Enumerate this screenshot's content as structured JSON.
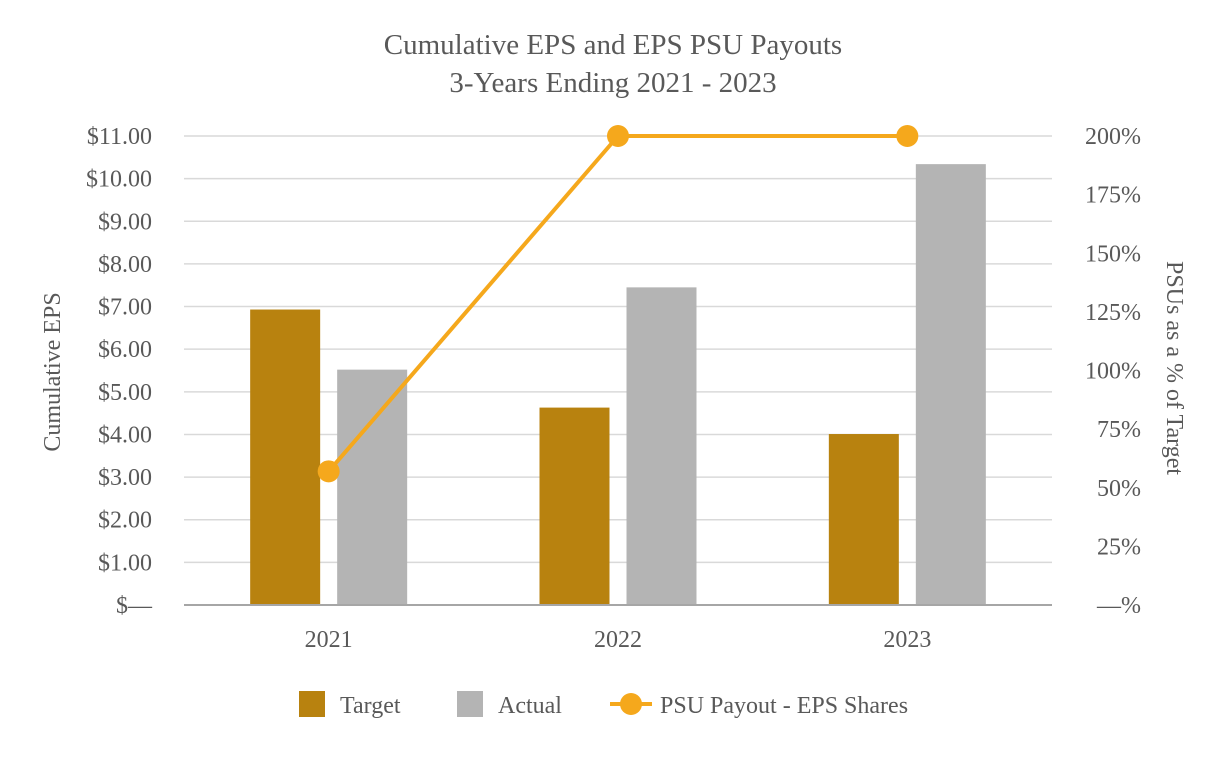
{
  "chart_data": {
    "type": "bar",
    "title": "Cumulative EPS and EPS PSU Payouts",
    "subtitle": "3-Years Ending 2021 - 2023",
    "categories": [
      "2021",
      "2022",
      "2023"
    ],
    "series": [
      {
        "name": "Target",
        "type": "bar",
        "axis": "left",
        "values": [
          6.93,
          4.63,
          4.01
        ],
        "color": "#b8820f"
      },
      {
        "name": "Actual",
        "type": "bar",
        "axis": "left",
        "values": [
          5.52,
          7.45,
          10.34
        ],
        "color": "#b4b4b4"
      },
      {
        "name": "PSU Payout - EPS Shares",
        "type": "line",
        "axis": "right",
        "values": [
          57,
          200,
          200
        ],
        "color": "#f5a81c"
      }
    ],
    "ylabel": "Cumulative EPS",
    "y2label": "PSUs as a % of Target",
    "ylim": [
      0,
      11
    ],
    "y2lim": [
      0,
      200
    ],
    "yticks": [
      "$—",
      "$1.00",
      "$2.00",
      "$3.00",
      "$4.00",
      "$5.00",
      "$6.00",
      "$7.00",
      "$8.00",
      "$9.00",
      "$10.00",
      "$11.00"
    ],
    "y2ticks": [
      "—%",
      "25%",
      "50%",
      "75%",
      "100%",
      "125%",
      "150%",
      "175%",
      "200%"
    ],
    "grid": true,
    "legend_position": "bottom",
    "colors": {
      "grid": "#d9d9d9",
      "axis": "#a6a6a6",
      "text": "#595959"
    }
  }
}
